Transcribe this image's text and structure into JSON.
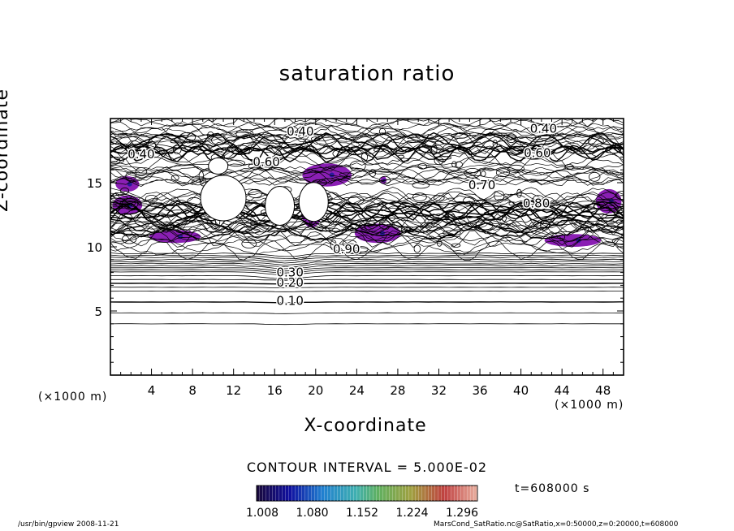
{
  "chart_data": {
    "type": "contour",
    "title": "saturation ratio",
    "xlabel": "X-coordinate",
    "ylabel": "Z-coordinate",
    "x_unit": "(×1000 m)",
    "y_unit": "(×1000 m)",
    "xlim": [
      0,
      50
    ],
    "ylim": [
      0,
      20
    ],
    "x_ticks": [
      4,
      8,
      12,
      16,
      20,
      24,
      28,
      32,
      36,
      40,
      44,
      48
    ],
    "y_ticks": [
      5,
      10,
      15
    ],
    "contour_interval_label": "CONTOUR INTERVAL = 5.000E-02",
    "colorbar_ticks": [
      "1.008",
      "1.080",
      "1.152",
      "1.224",
      "1.296"
    ],
    "time_label": "t=608000 s",
    "contour_labels": [
      {
        "text": "0.10",
        "x": 17.5,
        "z": 5.8
      },
      {
        "text": "0.20",
        "x": 17.5,
        "z": 7.2
      },
      {
        "text": "0.30",
        "x": 17.5,
        "z": 8.0
      },
      {
        "text": "0.40",
        "x": 18.5,
        "z": 19.0
      },
      {
        "text": "0.40",
        "x": 42.2,
        "z": 19.2
      },
      {
        "text": "0.40",
        "x": 3.0,
        "z": 17.2
      },
      {
        "text": "0.60",
        "x": 41.6,
        "z": 17.3
      },
      {
        "text": "0.70",
        "x": 36.2,
        "z": 14.8
      },
      {
        "text": "0.80",
        "x": 41.5,
        "z": 13.4
      },
      {
        "text": "0.60",
        "x": 15.2,
        "z": 16.6
      },
      {
        "text": "0.90",
        "x": 23.0,
        "z": 9.8
      }
    ],
    "supersaturated_regions": [
      {
        "x": [
          0.5,
          2.8
        ],
        "z": [
          14.3,
          15.5
        ]
      },
      {
        "x": 0.2,
        "x2": 3.1,
        "z": [
          12.5,
          14.0
        ]
      },
      {
        "x": [
          3.8,
          8.8
        ],
        "z": [
          10.3,
          11.3
        ]
      },
      {
        "x": [
          18.7,
          23.5
        ],
        "z": [
          14.7,
          16.5
        ]
      },
      {
        "x": [
          18.6,
          20.6
        ],
        "z": [
          11.5,
          14.0
        ]
      },
      {
        "x": [
          23.8,
          28.3
        ],
        "z": [
          10.3,
          11.8
        ]
      },
      {
        "x": [
          26.3,
          26.9
        ],
        "z": [
          14.9,
          15.5
        ]
      },
      {
        "x": [
          42.3,
          47.8
        ],
        "z": [
          10.0,
          11.0
        ]
      },
      {
        "x": [
          47.3,
          49.8
        ],
        "z": [
          12.6,
          14.5
        ]
      }
    ],
    "colors": {
      "fill": "#8a1fb4",
      "fill_dark": "#2a1a9a",
      "line": "#000000"
    }
  },
  "footer": {
    "left": "/usr/bin/gpview   2008-11-21",
    "right": "MarsCond_SatRatio.nc@SatRatio,x=0:50000,z=0:20000,t=608000"
  }
}
